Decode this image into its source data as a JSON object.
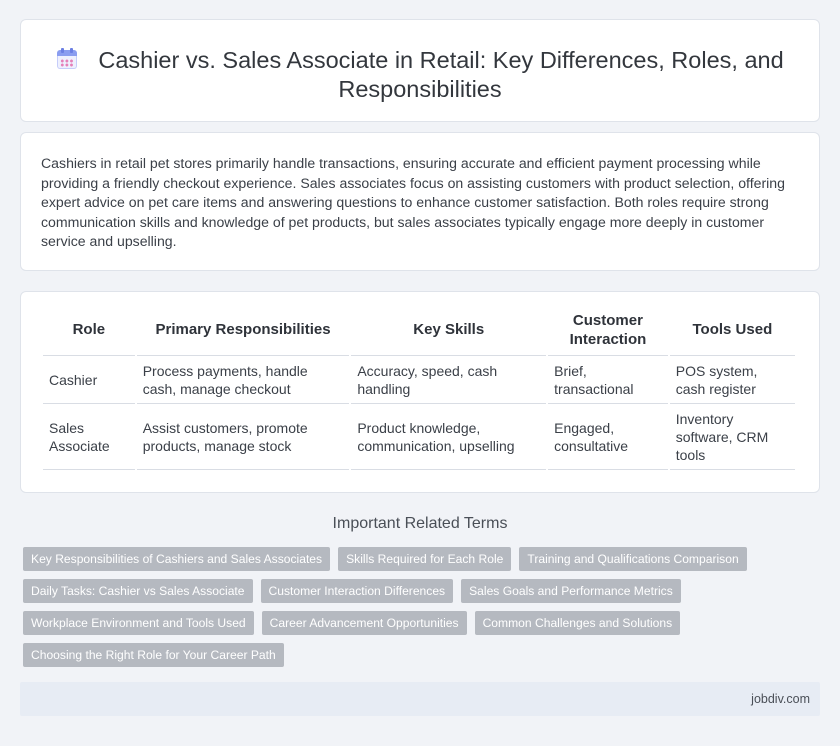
{
  "header": {
    "title": "Cashier vs. Sales Associate in Retail: Key Differences, Roles, and Responsibilities",
    "icon": "calendar-icon"
  },
  "summary": {
    "text": "Cashiers in retail pet stores primarily handle transactions, ensuring accurate and efficient payment processing while providing a friendly checkout experience. Sales associates focus on assisting customers with product selection, offering expert advice on pet care items and answering questions to enhance customer satisfaction. Both roles require strong communication skills and knowledge of pet products, but sales associates typically engage more deeply in customer service and upselling."
  },
  "table": {
    "headers": [
      "Role",
      "Primary Responsibilities",
      "Key Skills",
      "Customer Interaction",
      "Tools Used"
    ],
    "rows": [
      [
        "Cashier",
        "Process payments, handle cash, manage checkout",
        "Accuracy, speed, cash handling",
        "Brief, transactional",
        "POS system, cash register"
      ],
      [
        "Sales Associate",
        "Assist customers, promote products, manage stock",
        "Product knowledge, communication, upselling",
        "Engaged, consultative",
        "Inventory software, CRM tools"
      ]
    ]
  },
  "related": {
    "heading": "Important Related Terms",
    "tags": [
      "Key Responsibilities of Cashiers and Sales Associates",
      "Skills Required for Each Role",
      "Training and Qualifications Comparison",
      "Daily Tasks: Cashier vs Sales Associate",
      "Customer Interaction Differences",
      "Sales Goals and Performance Metrics",
      "Workplace Environment and Tools Used",
      "Career Advancement Opportunities",
      "Common Challenges and Solutions",
      "Choosing the Right Role for Your Career Path"
    ]
  },
  "footer": {
    "site": "jobdiv.com"
  }
}
